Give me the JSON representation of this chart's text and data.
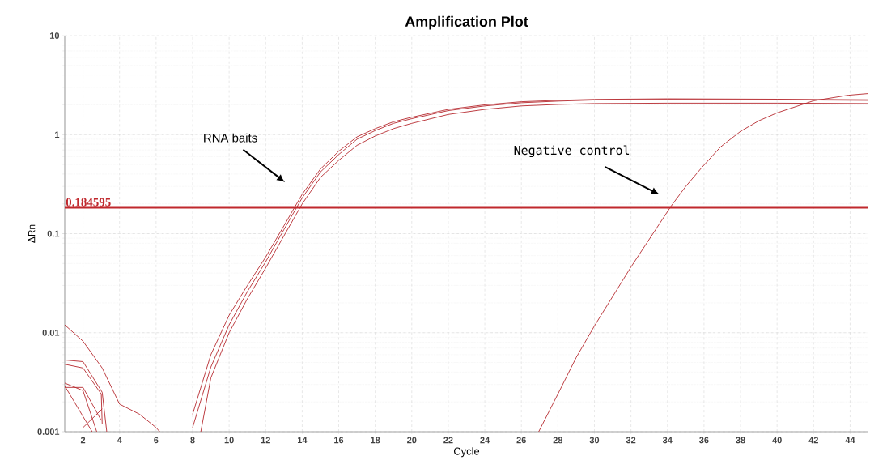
{
  "chart_data": {
    "type": "line",
    "title": "Amplification Plot",
    "xlabel": "Cycle",
    "ylabel": "ΔRn",
    "log": "y",
    "grid": true,
    "line_style": "solid",
    "xlim": [
      1,
      45
    ],
    "xticks": [
      2,
      4,
      6,
      8,
      10,
      12,
      14,
      16,
      18,
      20,
      22,
      24,
      26,
      28,
      30,
      32,
      34,
      36,
      38,
      40,
      42,
      44
    ],
    "ylim": [
      0.001,
      10
    ],
    "yticks": [
      0.001,
      0.01,
      0.1,
      1,
      10
    ],
    "series": [
      {
        "color": "#b5272d",
        "x": [
          8,
          9,
          10,
          11,
          12,
          13,
          14,
          15,
          16,
          17,
          18,
          19,
          20,
          22,
          24,
          26,
          28,
          30,
          34,
          40,
          45
        ],
        "values": [
          0.0015,
          0.006,
          0.015,
          0.03,
          0.058,
          0.12,
          0.25,
          0.45,
          0.68,
          0.95,
          1.15,
          1.35,
          1.5,
          1.8,
          2.0,
          2.15,
          2.22,
          2.27,
          2.3,
          2.28,
          2.25
        ]
      },
      {
        "color": "#b5272d",
        "x": [
          8,
          9,
          10,
          11,
          12,
          13,
          14,
          15,
          16,
          17,
          18,
          19,
          20,
          22,
          24,
          26,
          28,
          30,
          34,
          40,
          45
        ],
        "values": [
          0.0011,
          0.0045,
          0.012,
          0.026,
          0.052,
          0.11,
          0.23,
          0.42,
          0.63,
          0.9,
          1.1,
          1.3,
          1.45,
          1.75,
          1.95,
          2.1,
          2.18,
          2.24,
          2.27,
          2.25,
          2.22
        ]
      },
      {
        "color": "#b5272d",
        "x": [
          8.45,
          9,
          10,
          11,
          12,
          13,
          14,
          15,
          16,
          17,
          18,
          19,
          20,
          22,
          24,
          26,
          28,
          30,
          34,
          40,
          45
        ],
        "values": [
          0.001,
          0.0035,
          0.01,
          0.022,
          0.045,
          0.095,
          0.2,
          0.37,
          0.55,
          0.78,
          0.97,
          1.15,
          1.3,
          1.6,
          1.8,
          1.95,
          2.02,
          2.06,
          2.08,
          2.08,
          2.06
        ]
      },
      {
        "color": "#b5272d",
        "x": [
          26.95,
          28,
          29,
          30,
          32,
          34.2,
          35,
          35.9,
          36.9,
          38,
          39,
          40,
          42,
          43.9,
          45
        ],
        "values": [
          0.001,
          0.0024,
          0.0056,
          0.0117,
          0.046,
          0.19,
          0.3,
          0.47,
          0.75,
          1.08,
          1.38,
          1.66,
          2.2,
          2.5,
          2.6
        ]
      },
      {
        "color": "#b5272d",
        "x": [
          1,
          2,
          3.05,
          4,
          5.1,
          6,
          6.2
        ],
        "values": [
          0.012,
          0.0082,
          0.0044,
          0.0019,
          0.0015,
          0.0011,
          0.001
        ]
      },
      {
        "color": "#b5272d",
        "x": [
          1,
          2,
          3.05,
          3.3
        ],
        "values": [
          0.0053,
          0.0051,
          0.0025,
          0.001
        ]
      },
      {
        "color": "#b5272d",
        "x": [
          1,
          2,
          3,
          3.05
        ],
        "values": [
          0.0048,
          0.0044,
          0.0024,
          0.0012
        ]
      },
      {
        "color": "#b5272d",
        "x": [
          1,
          2,
          2.75
        ],
        "values": [
          0.0031,
          0.0026,
          0.001
        ]
      },
      {
        "color": "#b5272d",
        "x": [
          1,
          2,
          3
        ],
        "values": [
          0.0028,
          0.0028,
          0.0013
        ]
      },
      {
        "color": "#b5272d",
        "x": [
          2,
          3.05
        ],
        "values": [
          0.0011,
          0.0017
        ]
      },
      {
        "color": "#b5272d",
        "x": [
          1,
          2.5
        ],
        "values": [
          0.0029,
          0.001
        ]
      }
    ],
    "ref_lines": [
      {
        "axis": "y",
        "value": 0.184595,
        "label": "0.184595",
        "color": "#c0282d"
      }
    ],
    "annotations": [
      "RNA baits",
      "Negative control"
    ]
  }
}
